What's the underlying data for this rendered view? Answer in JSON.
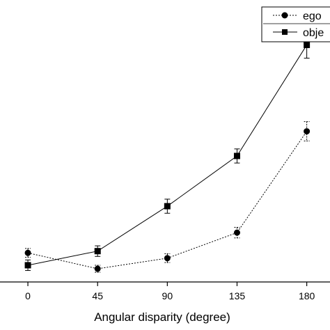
{
  "chart_data": {
    "type": "line",
    "title": "",
    "xlabel": "Angular disparity (degree)",
    "ylabel": "",
    "x": [
      0,
      45,
      90,
      135,
      180
    ],
    "x_tick_labels": [
      "0",
      "45",
      "90",
      "135",
      "180"
    ],
    "xlim": [
      -18,
      195
    ],
    "ylim": [
      0,
      320
    ],
    "grid": false,
    "legend_position": "top-right",
    "series": [
      {
        "name": "ego",
        "marker": "circle",
        "line_style": "dashed",
        "color": "#000000",
        "values": [
          33,
          15,
          27,
          56,
          171
        ],
        "errors": [
          5,
          4,
          5,
          6,
          11
        ]
      },
      {
        "name": "obje",
        "marker": "square",
        "line_style": "solid",
        "color": "#000000",
        "values": [
          19,
          35,
          86,
          143,
          269
        ],
        "errors": [
          6,
          6,
          8,
          8,
          15
        ]
      }
    ]
  }
}
